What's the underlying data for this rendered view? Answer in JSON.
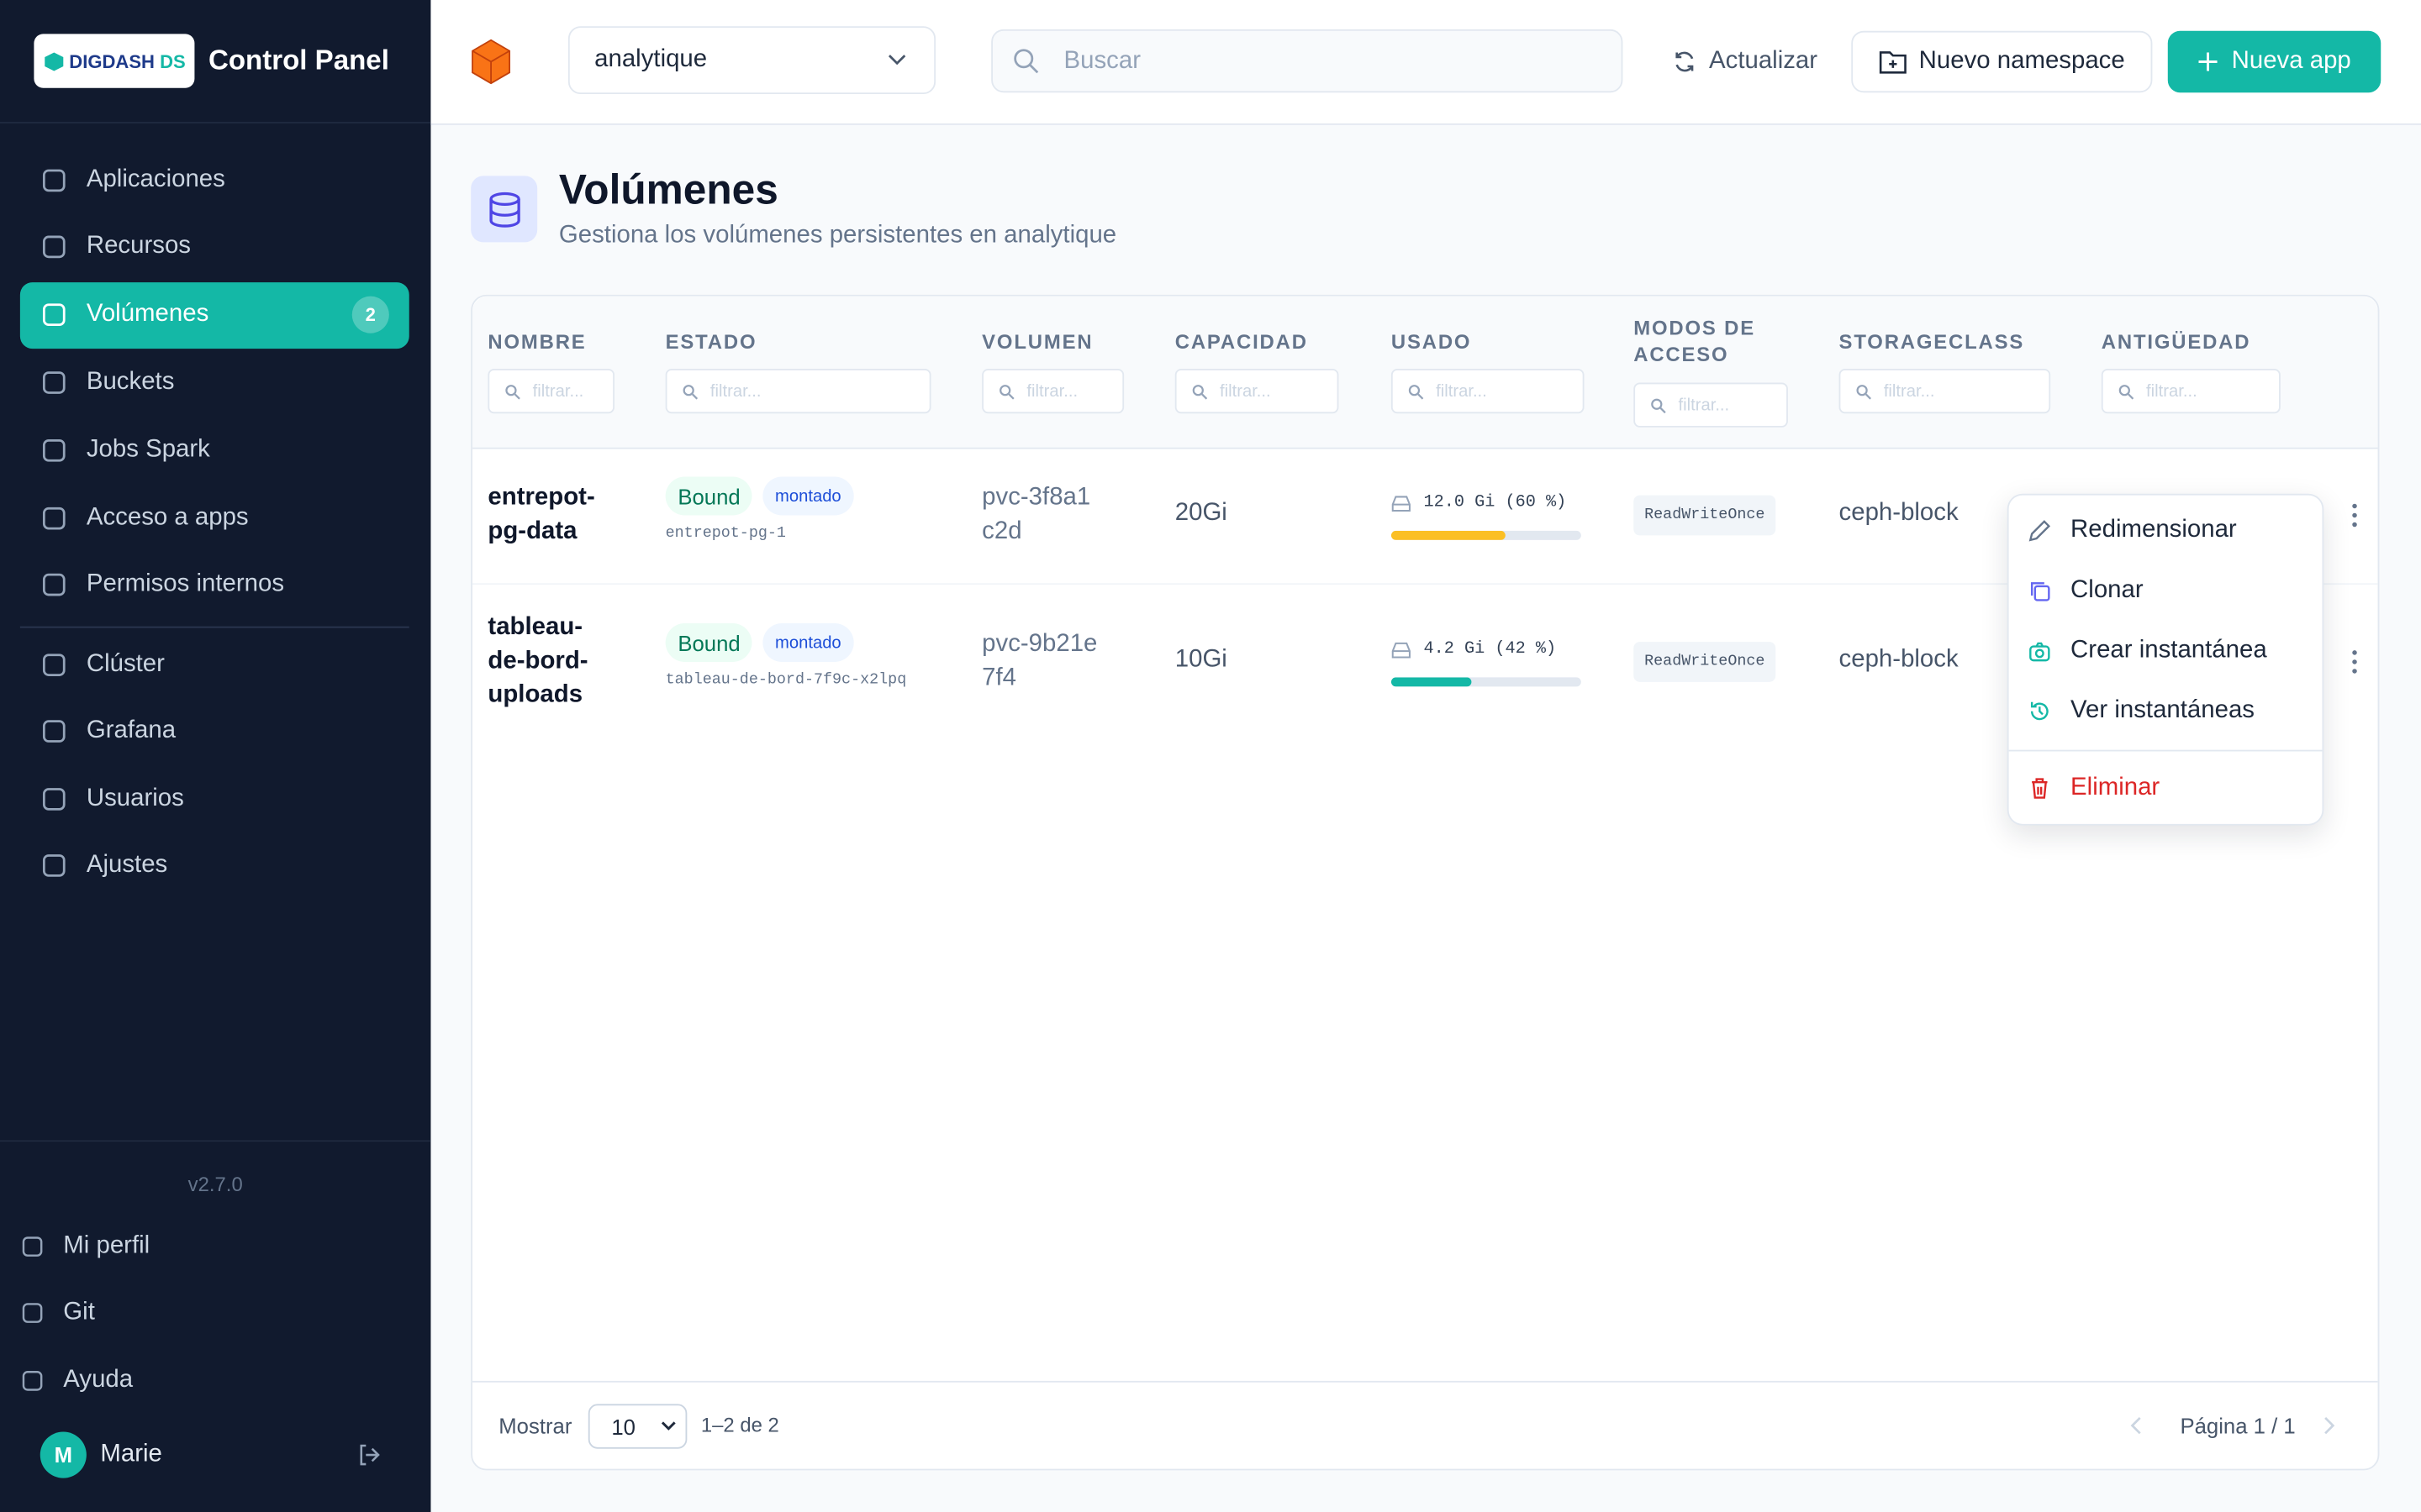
{
  "sidebar": {
    "logo": "DIGDASH",
    "logo_suffix": "DS",
    "title": "Control Panel",
    "nav": [
      {
        "label": "Aplicaciones"
      },
      {
        "label": "Recursos"
      },
      {
        "label": "Volúmenes",
        "badge": 2,
        "active": true
      },
      {
        "label": "Buckets"
      },
      {
        "label": "Jobs Spark"
      },
      {
        "label": "Acceso a apps"
      },
      {
        "label": "Permisos internos"
      }
    ],
    "nav_secondary": [
      {
        "label": "Clúster"
      },
      {
        "label": "Grafana"
      },
      {
        "label": "Usuarios"
      },
      {
        "label": "Ajustes"
      }
    ],
    "version": "v2.7.0",
    "footer": [
      {
        "label": "Mi perfil"
      },
      {
        "label": "Git"
      },
      {
        "label": "Ayuda"
      }
    ],
    "user": {
      "initial": "M",
      "name": "Marie"
    }
  },
  "topbar": {
    "namespace": "analytique",
    "search_placeholder": "Buscar",
    "refresh": "Actualizar",
    "new_namespace": "Nuevo namespace",
    "new_app": "Nueva app"
  },
  "page": {
    "title": "Volúmenes",
    "subtitle": "Gestiona los volúmenes persistentes en analytique"
  },
  "table": {
    "columns": [
      "NOMBRE",
      "ESTADO",
      "VOLUMEN",
      "CAPACIDAD",
      "USADO",
      "MODOS DE ACCESO",
      "STORAGECLASS",
      "ANTIGÜEDAD"
    ],
    "filter_placeholder": "filtrar...",
    "rows": [
      {
        "name": "entrepot-pg-data",
        "status": "Bound",
        "mount": "montado",
        "pod": "entrepot-pg-1",
        "volume": "pvc-3f8a1c2d",
        "capacity": "20Gi",
        "used_label": "12.0 Gi (60 %)",
        "used_percent": 60,
        "bar_color": "#fbbf24",
        "access": "ReadWriteOnce",
        "storage_class": "ceph-block"
      },
      {
        "name": "tableau-de-bord-uploads",
        "status": "Bound",
        "mount": "montado",
        "pod": "tableau-de-bord-7f9c-x2lpq",
        "volume": "pvc-9b21e7f4",
        "capacity": "10Gi",
        "used_label": "4.2 Gi (42 %)",
        "used_percent": 42,
        "bar_color": "#14b8a6",
        "access": "ReadWriteOnce",
        "storage_class": "ceph-block"
      }
    ]
  },
  "menu": {
    "items": [
      {
        "label": "Redimensionar"
      },
      {
        "label": "Clonar"
      },
      {
        "label": "Crear instantánea"
      },
      {
        "label": "Ver instantáneas"
      },
      {
        "label": "Eliminar",
        "danger": true
      }
    ]
  },
  "pagination": {
    "show": "Mostrar",
    "page_size": "10",
    "range": "1–2 de 2",
    "page": "Página 1 / 1"
  }
}
